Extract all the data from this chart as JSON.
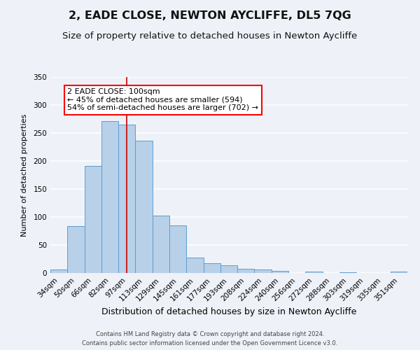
{
  "title": "2, EADE CLOSE, NEWTON AYCLIFFE, DL5 7QG",
  "subtitle": "Size of property relative to detached houses in Newton Aycliffe",
  "xlabel": "Distribution of detached houses by size in Newton Aycliffe",
  "ylabel": "Number of detached properties",
  "footer_line1": "Contains HM Land Registry data © Crown copyright and database right 2024.",
  "footer_line2": "Contains public sector information licensed under the Open Government Licence v3.0.",
  "categories": [
    "34sqm",
    "50sqm",
    "66sqm",
    "82sqm",
    "97sqm",
    "113sqm",
    "129sqm",
    "145sqm",
    "161sqm",
    "177sqm",
    "193sqm",
    "208sqm",
    "224sqm",
    "240sqm",
    "256sqm",
    "272sqm",
    "288sqm",
    "303sqm",
    "319sqm",
    "335sqm",
    "351sqm"
  ],
  "values": [
    6,
    84,
    191,
    271,
    265,
    236,
    103,
    85,
    27,
    17,
    14,
    7,
    6,
    4,
    0,
    3,
    0,
    1,
    0,
    0,
    3
  ],
  "bar_color": "#b8d0e8",
  "bar_edge_color": "#5a9fd4",
  "vline_x": 4,
  "vline_color": "#cc0000",
  "ylim": [
    0,
    350
  ],
  "yticks": [
    0,
    50,
    100,
    150,
    200,
    250,
    300,
    350
  ],
  "annotation_line1": "2 EADE CLOSE: 100sqm",
  "annotation_line2": "← 45% of detached houses are smaller (594)",
  "annotation_line3": "54% of semi-detached houses are larger (702) →",
  "background_color": "#eef2f8",
  "plot_bg_color": "#eef2f8",
  "grid_color": "#ffffff",
  "title_fontsize": 11.5,
  "subtitle_fontsize": 9.5,
  "xlabel_fontsize": 9,
  "ylabel_fontsize": 8,
  "tick_fontsize": 7.5,
  "annotation_fontsize": 8,
  "footer_fontsize": 6
}
